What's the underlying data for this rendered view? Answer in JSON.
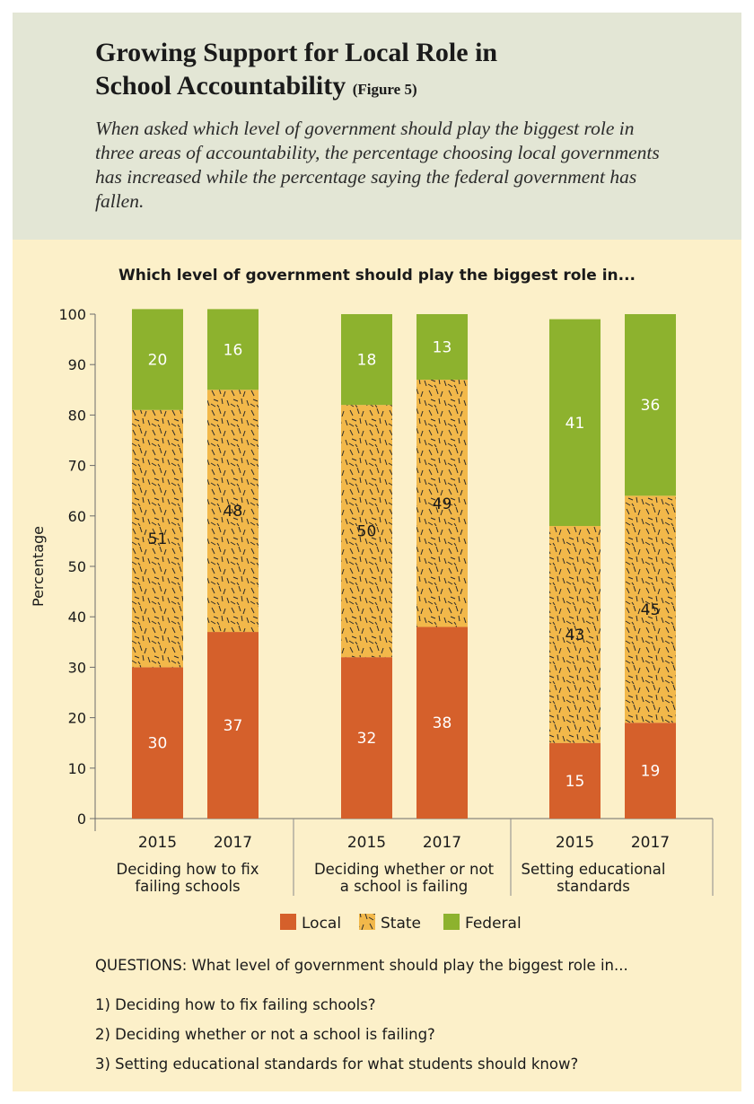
{
  "header": {
    "title_line1": "Growing Support for Local Role in",
    "title_line2": "School Accountability",
    "figure_label": "(Figure 5)",
    "subtitle": "When asked which level of government should play the biggest role in three areas of accountability, the percentage choosing local governments has increased while the percentage saying the federal government has fallen."
  },
  "colors": {
    "local": "#d5602b",
    "state": "#f2b84a",
    "federal": "#8db22e",
    "header_bg": "#e3e6d5",
    "frame_bg": "#fcf0c9"
  },
  "chart_data": {
    "type": "bar",
    "stacked": true,
    "title": "Which level of government should play the biggest role in...",
    "ylabel": "Percentage",
    "ylim": [
      0,
      100
    ],
    "yticks": [
      0,
      10,
      20,
      30,
      40,
      50,
      60,
      70,
      80,
      90,
      100
    ],
    "groups": [
      {
        "label_line1": "Deciding how to fix",
        "label_line2": "failing schools",
        "years": [
          "2015",
          "2017"
        ]
      },
      {
        "label_line1": "Deciding whether or not",
        "label_line2": "a school is failing",
        "years": [
          "2015",
          "2017"
        ]
      },
      {
        "label_line1": "Setting educational",
        "label_line2": "standards",
        "years": [
          "2015",
          "2017"
        ]
      }
    ],
    "series": [
      {
        "name": "Local",
        "values": [
          30,
          37,
          32,
          38,
          15,
          19
        ]
      },
      {
        "name": "State",
        "values": [
          51,
          48,
          50,
          49,
          43,
          45
        ]
      },
      {
        "name": "Federal",
        "values": [
          20,
          16,
          18,
          13,
          41,
          36
        ]
      }
    ],
    "legend_position": "bottom"
  },
  "questions": {
    "lead": "QUESTIONS: What level of government should play the biggest role in...",
    "items": [
      "1) Deciding how to fix failing schools?",
      "2) Deciding whether or not a school is failing?",
      "3) Setting educational standards for what students should know?"
    ]
  }
}
